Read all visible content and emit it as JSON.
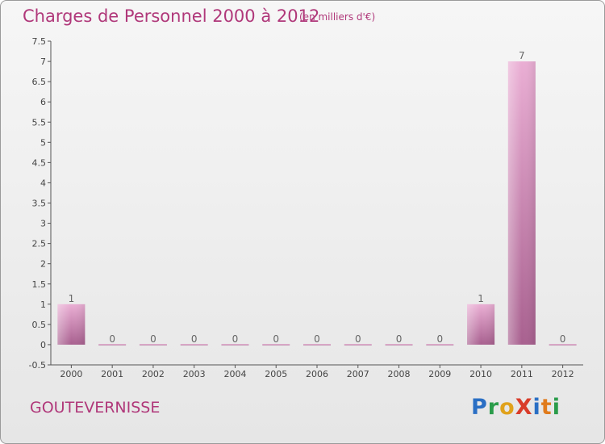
{
  "header": {
    "title": "Charges de Personnel 2000 à 2012",
    "subtitle": "(en milliers d'€)"
  },
  "footer": {
    "place": "GOUTEVERNISSE",
    "logo": {
      "letters": [
        {
          "ch": "P",
          "color": "#2a6fc4"
        },
        {
          "ch": "r",
          "color": "#2a9c4a"
        },
        {
          "ch": "o",
          "color": "#e0a21c"
        },
        {
          "ch": "X",
          "color": "#d93c2a"
        },
        {
          "ch": "i",
          "color": "#2a6fc4"
        },
        {
          "ch": "t",
          "color": "#e07b1c"
        },
        {
          "ch": "i",
          "color": "#2a9c4a"
        }
      ]
    }
  },
  "colors": {
    "accent": "#b0387a",
    "bar_light": "#e8a9d0",
    "bar_dark": "#a8608f",
    "axis": "#555555"
  },
  "chart_data": {
    "type": "bar",
    "categories": [
      "2000",
      "2001",
      "2002",
      "2003",
      "2004",
      "2005",
      "2006",
      "2007",
      "2008",
      "2009",
      "2010",
      "2011",
      "2012"
    ],
    "values": [
      1,
      0,
      0,
      0,
      0,
      0,
      0,
      0,
      0,
      0,
      1,
      7,
      0
    ],
    "data_labels": [
      "1",
      "0",
      "0",
      "0",
      "0",
      "0",
      "0",
      "0",
      "0",
      "0",
      "1",
      "7",
      "0"
    ],
    "ylim": [
      -0.5,
      7.5
    ],
    "yticks": [
      -0.5,
      0,
      0.5,
      1,
      1.5,
      2,
      2.5,
      3,
      3.5,
      4,
      4.5,
      5,
      5.5,
      6,
      6.5,
      7,
      7.5
    ],
    "ytick_labels": [
      "-0.5",
      "0",
      "0.5",
      "1",
      "1.5",
      "2",
      "2.5",
      "3",
      "3.5",
      "4",
      "4.5",
      "5",
      "5.5",
      "6",
      "6.5",
      "7",
      "7.5"
    ],
    "grid": false,
    "legend": "none"
  }
}
